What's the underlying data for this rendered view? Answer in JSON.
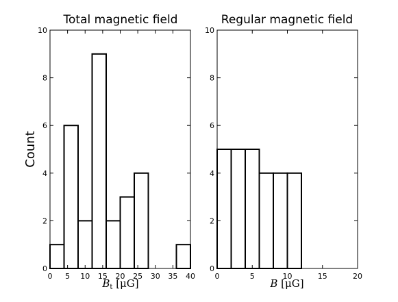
{
  "ylabel": "Count",
  "chart_data": [
    {
      "type": "bar",
      "title": "Total magnetic field",
      "xlabel": "B",
      "xlabel_sub": "t",
      "xlabel_unit": " [μG]",
      "xlim": [
        0,
        40
      ],
      "ylim": [
        0,
        10
      ],
      "xticks": [
        0,
        5,
        10,
        15,
        20,
        25,
        30,
        35,
        40
      ],
      "yticks": [
        0,
        2,
        4,
        6,
        8,
        10
      ],
      "bin_edges": [
        0,
        4,
        8,
        12,
        16,
        20,
        24,
        28,
        32,
        36,
        40
      ],
      "values": [
        1,
        6,
        2,
        9,
        2,
        3,
        4,
        0,
        0,
        1
      ],
      "grid": false,
      "fill": "#ffffff",
      "edge_color": "#000000"
    },
    {
      "type": "bar",
      "title": "Regular magnetic field",
      "xlabel": "B",
      "xlabel_sub": "",
      "xlabel_unit": " [μG]",
      "xlim": [
        0,
        20
      ],
      "ylim": [
        0,
        10
      ],
      "xticks": [
        0,
        5,
        10,
        15,
        20
      ],
      "yticks": [
        0,
        2,
        4,
        6,
        8,
        10
      ],
      "bin_edges": [
        0,
        2,
        4,
        6,
        8,
        10,
        12
      ],
      "values": [
        5,
        5,
        5,
        4,
        4,
        4
      ],
      "grid": false,
      "fill": "#ffffff",
      "edge_color": "#000000"
    }
  ]
}
